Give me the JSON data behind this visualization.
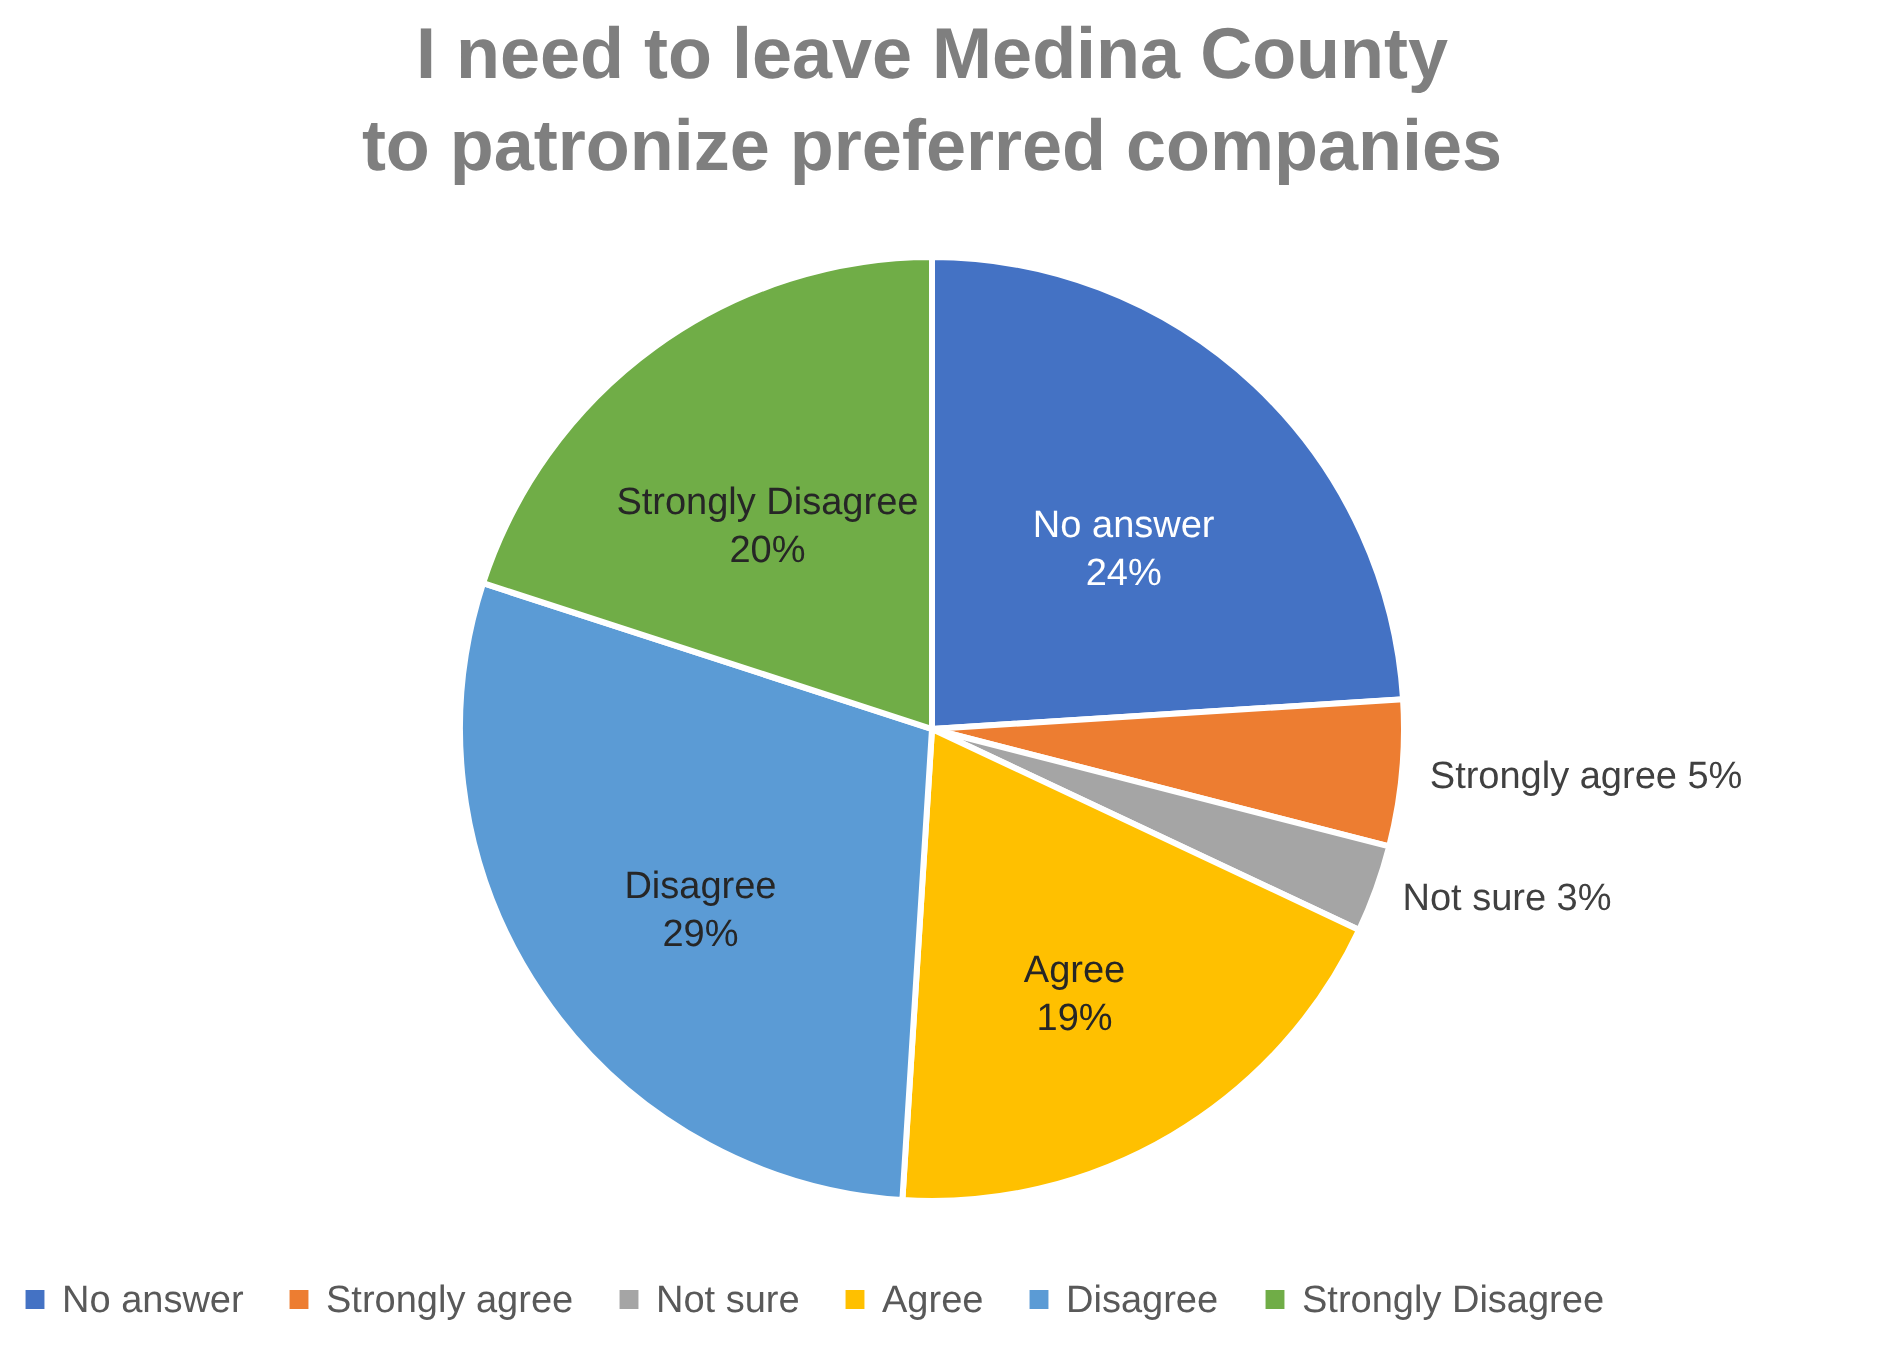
{
  "chart_data": {
    "type": "pie",
    "title": "I need to leave Medina County to patronize preferred companies",
    "categories": [
      "No answer",
      "Strongly agree",
      "Not sure",
      "Agree",
      "Disagree",
      "Strongly Disagree"
    ],
    "values": [
      24,
      5,
      3,
      19,
      29,
      20
    ],
    "value_labels": [
      "24%",
      "5%",
      "3%",
      "19%",
      "29%",
      "20%"
    ],
    "colors": [
      "#4472c4",
      "#ed7d31",
      "#a5a5a5",
      "#ffc000",
      "#5b9bd5",
      "#70ad47"
    ],
    "legend": "bottom"
  }
}
